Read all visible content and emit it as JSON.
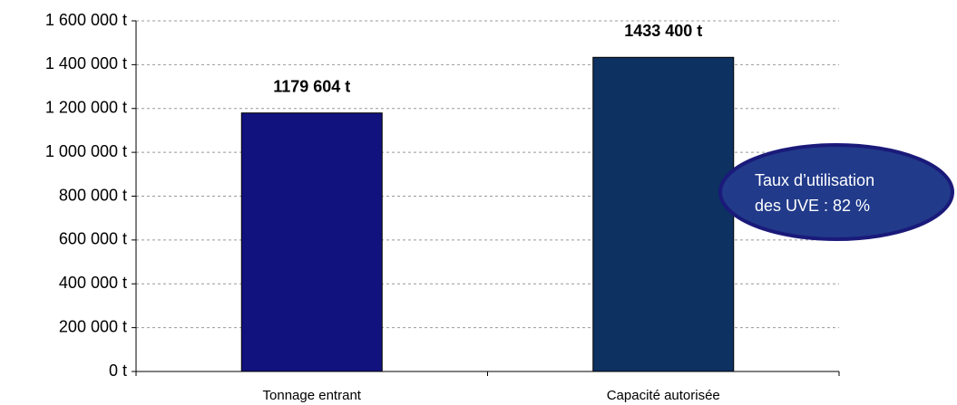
{
  "chart_data": {
    "type": "bar",
    "categories": [
      "Tonnage entrant",
      "Capacité autorisée"
    ],
    "values": [
      1179604,
      1433400
    ],
    "value_labels": [
      "1179 604 t",
      "1433 400 t"
    ],
    "colors": [
      "#12127e",
      "#0d3160"
    ],
    "ylim": [
      0,
      1600000
    ],
    "yticks": [
      {
        "value": 0,
        "label": "0 t"
      },
      {
        "value": 200000,
        "label": "200 000 t"
      },
      {
        "value": 400000,
        "label": "400 000 t"
      },
      {
        "value": 600000,
        "label": "600 000 t"
      },
      {
        "value": 800000,
        "label": "800 000 t"
      },
      {
        "value": 1000000,
        "label": "1 000 000 t"
      },
      {
        "value": 1200000,
        "label": "1 200 000 t"
      },
      {
        "value": 1400000,
        "label": "1 400 000 t"
      },
      {
        "value": 1600000,
        "label": "1 600 000 t"
      }
    ],
    "grid": true,
    "annotation": [
      "Taux  d’utilisation",
      "des UVE : 82 %"
    ]
  }
}
